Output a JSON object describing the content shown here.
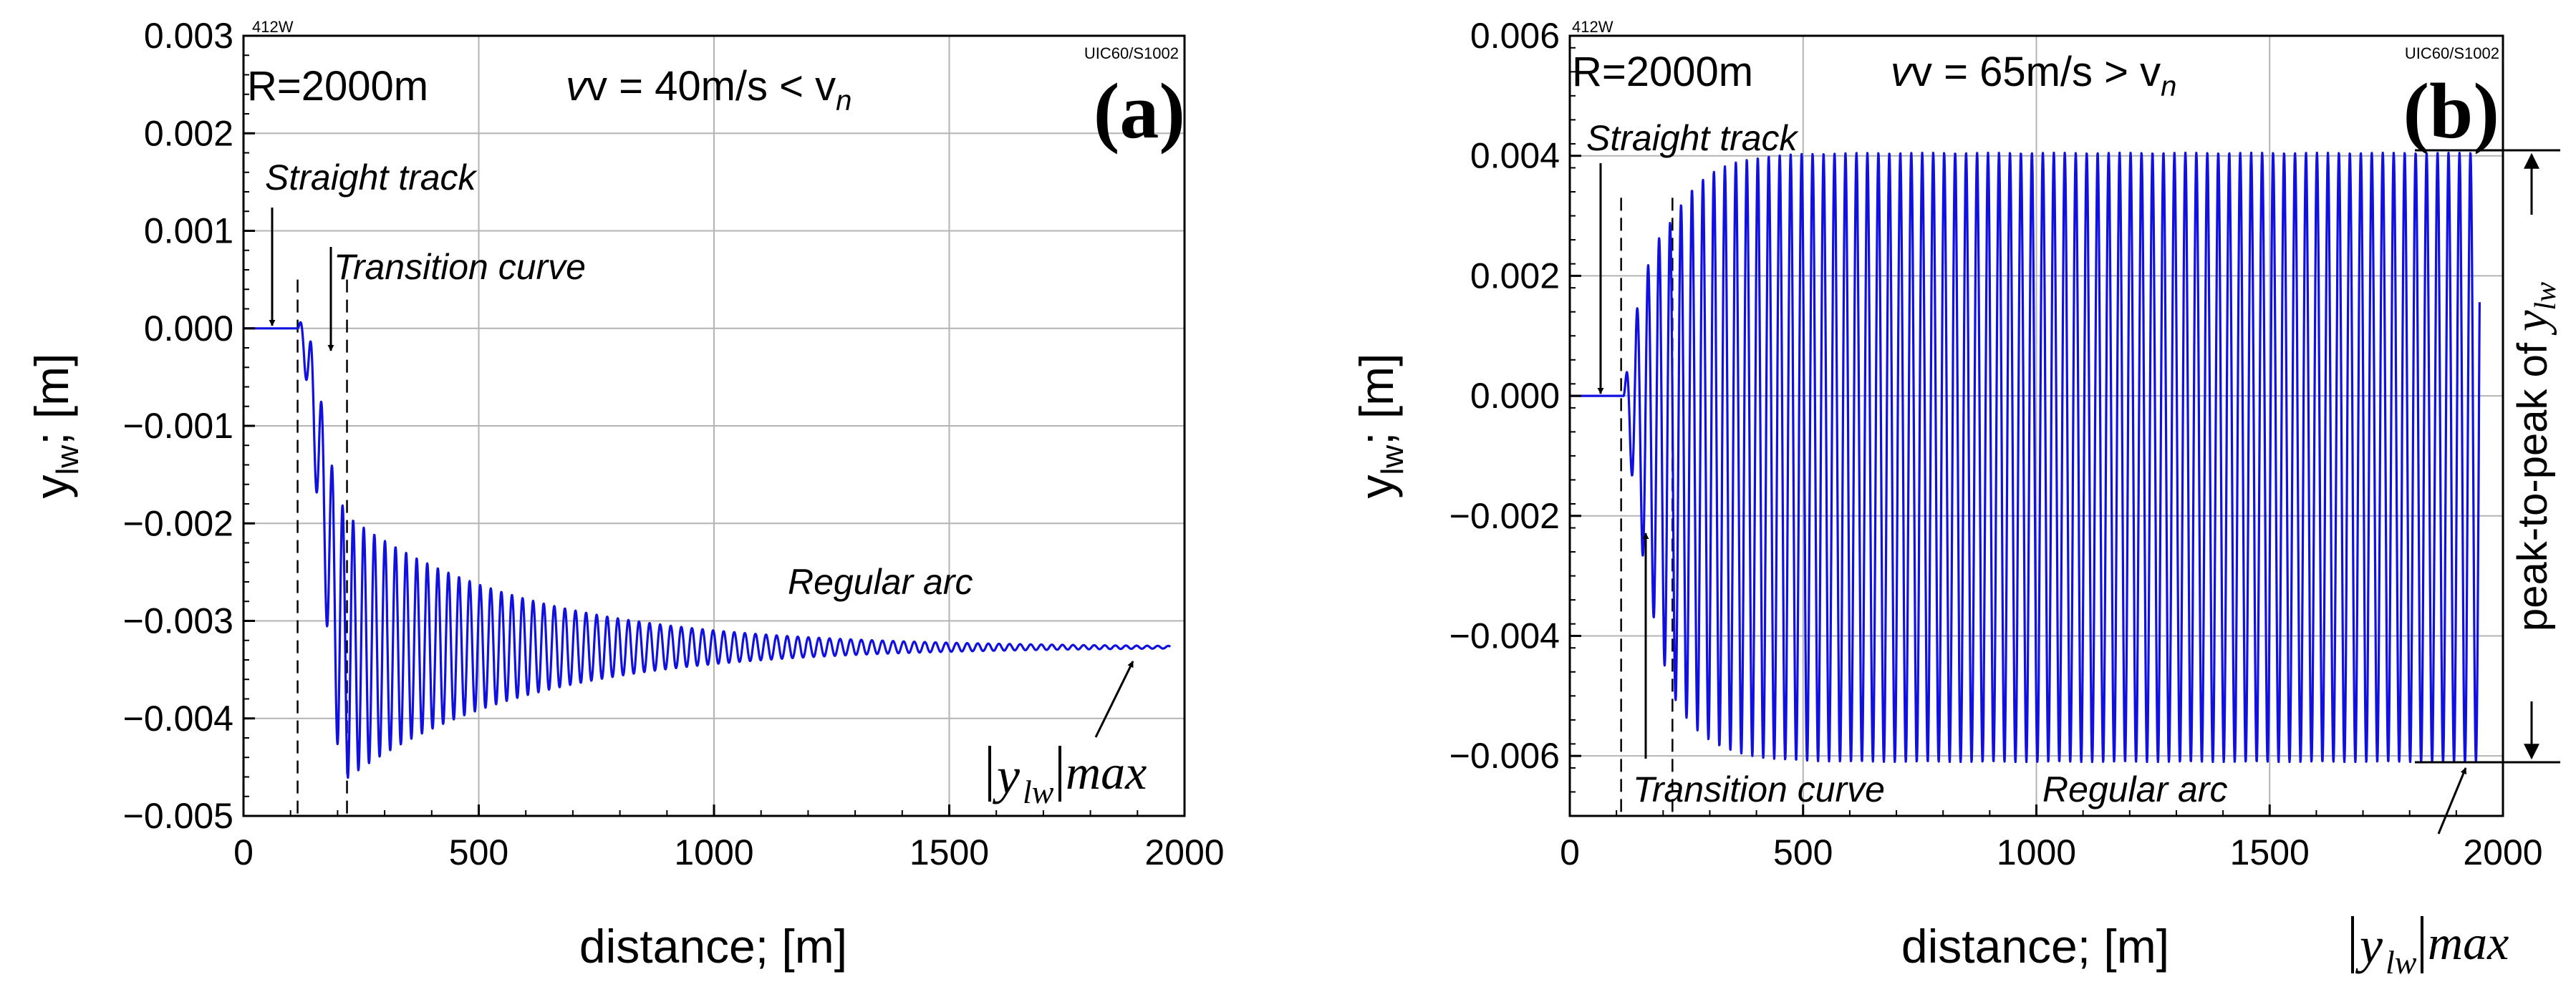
{
  "colors": {
    "signal": "#1010e0",
    "grid": "#b4b4b4",
    "axis": "#000000"
  },
  "chart_data": [
    {
      "id": "a",
      "type": "line",
      "panel_label": "(a)",
      "corner_tag_left": "412W",
      "corner_tag_right": "UIC60/S1002",
      "params_radius": "R=2000m",
      "params_speed": "v = 40m/s < v",
      "params_speed_sub": "n",
      "xlabel": "distance; [m]",
      "ylabel": "y",
      "ylabel_sub": "lw",
      "ylabel_unit": "; [m]",
      "xlim": [
        0,
        2000
      ],
      "ylim": [
        -0.005,
        0.003
      ],
      "x_ticks": [
        "0",
        "500",
        "1000",
        "1500",
        "2000"
      ],
      "y_ticks": [
        "0.003",
        "0.002",
        "0.001",
        "0.000",
        "−0.001",
        "−0.002",
        "−0.003",
        "−0.004",
        "−0.005"
      ],
      "annotations": {
        "straight_track": "Straight track",
        "transition_curve": "Transition curve",
        "regular_arc": "Regular arc",
        "ylw_max_y": "y",
        "ylw_max_sub": "lw",
        "ylw_max_suffix": "max"
      },
      "section_bounds_m": [
        115,
        220
      ],
      "series": [
        {
          "name": "y_lw",
          "flat_until_m": 115,
          "steady_state_m": -0.00327,
          "end_m": 1970,
          "initial_amplitude_m": 0.0014,
          "decay_length_m": 380,
          "wavelength_m": 22.5
        }
      ]
    },
    {
      "id": "b",
      "type": "line",
      "panel_label": "(b)",
      "corner_tag_left": "412W",
      "corner_tag_right": "UIC60/S1002",
      "params_radius": "R=2000m",
      "params_speed": "v = 65m/s > v",
      "params_speed_sub": "n",
      "xlabel": "distance; [m]",
      "ylabel": "y",
      "ylabel_sub": "lw",
      "ylabel_unit": "; [m]",
      "xlim": [
        0,
        2000
      ],
      "ylim": [
        -0.007,
        0.006
      ],
      "x_ticks": [
        "0",
        "500",
        "1000",
        "1500",
        "2000"
      ],
      "y_ticks": [
        "0.006",
        "0.004",
        "0.002",
        "0.000",
        "−0.002",
        "−0.004",
        "−0.006"
      ],
      "annotations": {
        "straight_track": "Straight track",
        "transition_curve": "Transition curve",
        "regular_arc": "Regular arc",
        "peak_to_peak_prefix": "peak-to-peak of ",
        "peak_to_peak_y": "y",
        "peak_to_peak_sub": "lw",
        "ylw_max_y": "y",
        "ylw_max_sub": "lw",
        "ylw_max_suffix": "max"
      },
      "section_bounds_m": [
        110,
        220
      ],
      "series": [
        {
          "name": "y_lw",
          "flat_until_m": 115,
          "center_m": -0.001,
          "upper_limit_m": 0.00405,
          "lower_limit_m": -0.0061,
          "end_m": 1950,
          "wavelength_m": 23.5
        }
      ]
    }
  ]
}
